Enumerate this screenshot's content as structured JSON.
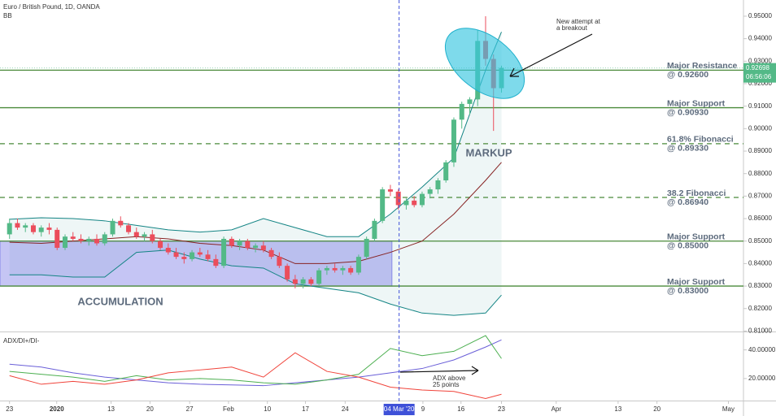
{
  "chart_data": [
    {
      "type": "candlestick",
      "title": "Euro / British Pound, 1D, OANDA",
      "indicator": "BB",
      "open": [
        0.853,
        0.858,
        0.856,
        0.857,
        0.854,
        0.856,
        0.855,
        0.847,
        0.852,
        0.851,
        0.85,
        0.851,
        0.849,
        0.853,
        0.859,
        0.857,
        0.854,
        0.852,
        0.853,
        0.85,
        0.847,
        0.845,
        0.843,
        0.842,
        0.845,
        0.844,
        0.842,
        0.839,
        0.851,
        0.848,
        0.85,
        0.847,
        0.848,
        0.846,
        0.843,
        0.839,
        0.833,
        0.831,
        0.833,
        0.831,
        0.837,
        0.838,
        0.837,
        0.838,
        0.836,
        0.843,
        0.851,
        0.859,
        0.873,
        0.872,
        0.866,
        0.868,
        0.866,
        0.871,
        0.873,
        0.877,
        0.885,
        0.904,
        0.911,
        0.913,
        0.939,
        0.931,
        0.918
      ],
      "high": [
        0.86,
        0.86,
        0.858,
        0.858,
        0.857,
        0.858,
        0.856,
        0.853,
        0.854,
        0.853,
        0.852,
        0.853,
        0.854,
        0.86,
        0.861,
        0.858,
        0.856,
        0.854,
        0.855,
        0.851,
        0.849,
        0.847,
        0.845,
        0.846,
        0.847,
        0.846,
        0.844,
        0.852,
        0.852,
        0.851,
        0.851,
        0.849,
        0.85,
        0.847,
        0.845,
        0.84,
        0.835,
        0.834,
        0.834,
        0.838,
        0.839,
        0.84,
        0.839,
        0.839,
        0.844,
        0.852,
        0.86,
        0.874,
        0.875,
        0.873,
        0.869,
        0.87,
        0.872,
        0.874,
        0.878,
        0.886,
        0.905,
        0.912,
        0.914,
        0.944,
        0.95,
        0.933,
        0.928
      ],
      "low": [
        0.851,
        0.855,
        0.854,
        0.853,
        0.852,
        0.853,
        0.846,
        0.846,
        0.85,
        0.849,
        0.848,
        0.848,
        0.848,
        0.852,
        0.856,
        0.853,
        0.851,
        0.85,
        0.849,
        0.846,
        0.844,
        0.842,
        0.84,
        0.841,
        0.843,
        0.841,
        0.838,
        0.838,
        0.847,
        0.846,
        0.846,
        0.845,
        0.845,
        0.842,
        0.838,
        0.832,
        0.829,
        0.829,
        0.83,
        0.83,
        0.835,
        0.836,
        0.835,
        0.835,
        0.835,
        0.842,
        0.85,
        0.858,
        0.87,
        0.864,
        0.864,
        0.865,
        0.865,
        0.869,
        0.871,
        0.876,
        0.883,
        0.9,
        0.906,
        0.91,
        0.928,
        0.899,
        0.916
      ],
      "close": [
        0.858,
        0.856,
        0.857,
        0.854,
        0.856,
        0.855,
        0.847,
        0.852,
        0.851,
        0.85,
        0.851,
        0.849,
        0.853,
        0.859,
        0.857,
        0.854,
        0.852,
        0.853,
        0.85,
        0.847,
        0.845,
        0.843,
        0.842,
        0.845,
        0.844,
        0.842,
        0.839,
        0.851,
        0.848,
        0.85,
        0.847,
        0.848,
        0.846,
        0.843,
        0.839,
        0.833,
        0.831,
        0.833,
        0.831,
        0.837,
        0.838,
        0.837,
        0.838,
        0.836,
        0.843,
        0.851,
        0.859,
        0.873,
        0.872,
        0.866,
        0.868,
        0.866,
        0.871,
        0.873,
        0.877,
        0.885,
        0.904,
        0.911,
        0.913,
        0.939,
        0.931,
        0.918,
        0.927
      ],
      "up_color": "#53b987",
      "down_color": "#eb4d5c",
      "xlim": [
        -1.2,
        92.5
      ],
      "ylim": [
        0.8098,
        0.9572
      ],
      "yticks": [
        {
          "value": 0.81,
          "label": "0.81000"
        },
        {
          "value": 0.82,
          "label": "0.82000"
        },
        {
          "value": 0.83,
          "label": "0.83000"
        },
        {
          "value": 0.84,
          "label": "0.84000"
        },
        {
          "value": 0.85,
          "label": "0.85000"
        },
        {
          "value": 0.86,
          "label": "0.86000"
        },
        {
          "value": 0.87,
          "label": "0.87000"
        },
        {
          "value": 0.88,
          "label": "0.88000"
        },
        {
          "value": 0.89,
          "label": "0.89000"
        },
        {
          "value": 0.9,
          "label": "0.90000"
        },
        {
          "value": 0.91,
          "label": "0.91000"
        },
        {
          "value": 0.92,
          "label": "0.92000"
        },
        {
          "value": 0.93,
          "label": "0.93000"
        },
        {
          "value": 0.94,
          "label": "0.94000"
        },
        {
          "value": 0.95,
          "label": "0.95000"
        }
      ],
      "bands": [
        {
          "x": [
            0,
            4,
            8,
            12,
            16,
            20,
            24,
            28,
            32,
            36,
            40,
            44,
            48,
            52,
            56,
            60,
            62
          ],
          "values": [
            0.8597,
            0.8604,
            0.86,
            0.859,
            0.857,
            0.855,
            0.854,
            0.855,
            0.86,
            0.856,
            0.852,
            0.852,
            0.862,
            0.874,
            0.887,
            0.926,
            0.943
          ],
          "color": "#138484"
        },
        {
          "x": [
            0,
            4,
            8,
            12,
            16,
            20,
            24,
            28,
            32,
            36,
            40,
            44,
            48,
            52,
            56,
            60,
            62
          ],
          "values": [
            0.835,
            0.835,
            0.834,
            0.834,
            0.845,
            0.846,
            0.842,
            0.839,
            0.838,
            0.831,
            0.829,
            0.827,
            0.822,
            0.818,
            0.817,
            0.818,
            0.826
          ],
          "color": "#138484"
        },
        {
          "x": [
            0,
            4,
            8,
            12,
            16,
            20,
            24,
            28,
            32,
            36,
            40,
            44,
            48,
            52,
            56,
            60,
            62
          ],
          "values": [
            0.8495,
            0.849,
            0.85,
            0.851,
            0.852,
            0.851,
            0.849,
            0.848,
            0.846,
            0.84,
            0.84,
            0.841,
            0.845,
            0.85,
            0.862,
            0.877,
            0.885
          ],
          "color": "#872323"
        }
      ],
      "band_fill": "#138484",
      "levels": [
        {
          "name": "Major Resistance",
          "label": "@ 0.92600",
          "value": 0.926,
          "style": "solid"
        },
        {
          "name": "Major Support",
          "label": "@ 0.90930",
          "value": 0.9093,
          "style": "solid"
        },
        {
          "name": "61.8% Fibonacci",
          "label": "@ 0.89330",
          "value": 0.8933,
          "style": "dashed"
        },
        {
          "name": "38.2 Fibonacci",
          "label": "@ 0.86940",
          "value": 0.8694,
          "style": "dashed"
        },
        {
          "name": "Major Support",
          "label": "@ 0.85000",
          "value": 0.85,
          "style": "solid"
        },
        {
          "name": "Major Support",
          "label": "@ 0.83000",
          "value": 0.83,
          "style": "solid"
        }
      ],
      "level_color": "#4a8a3a",
      "accumulation_zone": {
        "x": [
          -1.2,
          48.2
        ],
        "y": [
          0.83,
          0.85
        ],
        "color": "#5a5ae0"
      },
      "markup_label": "MARKUP",
      "accumulation_label": "ACCUMULATION",
      "breakout_note": [
        "New attempt at",
        "a breakout"
      ],
      "last_price": 0.92698,
      "countdown": "06:56:06"
    },
    {
      "type": "line",
      "title": "ADX/DI+/DI-",
      "series": [
        {
          "x": [
            0,
            4,
            8,
            12,
            16,
            20,
            24,
            28,
            32,
            36,
            40,
            44,
            48,
            52,
            56,
            60,
            62
          ],
          "values": [
            30,
            28,
            24,
            21,
            19,
            17,
            16,
            15.5,
            15,
            17,
            19,
            21,
            24,
            27,
            33,
            42,
            47
          ],
          "color": "#6a5fd8"
        },
        {
          "x": [
            0,
            4,
            8,
            12,
            16,
            20,
            24,
            28,
            32,
            36,
            40,
            44,
            48,
            52,
            56,
            60,
            62
          ],
          "values": [
            25,
            23,
            21,
            18,
            22,
            19,
            20,
            19,
            17,
            16,
            19,
            23,
            41,
            36,
            39,
            50,
            34
          ],
          "color": "#4caf50"
        },
        {
          "x": [
            0,
            4,
            8,
            12,
            16,
            20,
            24,
            28,
            32,
            36,
            40,
            44,
            48,
            52,
            56,
            60,
            62
          ],
          "values": [
            22,
            16,
            18,
            16,
            19,
            24,
            26,
            28,
            21,
            38,
            25,
            21,
            14,
            12,
            11,
            6,
            9
          ],
          "color": "#f0433a"
        }
      ],
      "xlim": [
        -1.2,
        92.5
      ],
      "ylim": [
        4.6,
        52.3
      ],
      "yticks": [
        {
          "value": 20,
          "label": "20.00000"
        },
        {
          "value": 40,
          "label": "40.00000"
        }
      ],
      "xticks": [
        {
          "value": 0,
          "label": "23"
        },
        {
          "value": 5.95,
          "label": "2020"
        },
        {
          "value": 12.8,
          "label": "13"
        },
        {
          "value": 17.7,
          "label": "20"
        },
        {
          "value": 22.7,
          "label": "27"
        },
        {
          "value": 27.6,
          "label": "Feb"
        },
        {
          "value": 32.5,
          "label": "10"
        },
        {
          "value": 37.3,
          "label": "17"
        },
        {
          "value": 42.3,
          "label": "24"
        },
        {
          "value": 52.1,
          "label": "9"
        },
        {
          "value": 56.9,
          "label": "16"
        },
        {
          "value": 62,
          "label": "23"
        },
        {
          "value": 68.9,
          "label": "Apr"
        },
        {
          "value": 76.7,
          "label": "13"
        },
        {
          "value": 81.6,
          "label": "20"
        },
        {
          "value": 90.6,
          "label": "May"
        }
      ],
      "crosshair": {
        "value": 49.1,
        "label": "04 Mar '20"
      },
      "adx_note": [
        "ADX above",
        "25 points"
      ]
    }
  ]
}
